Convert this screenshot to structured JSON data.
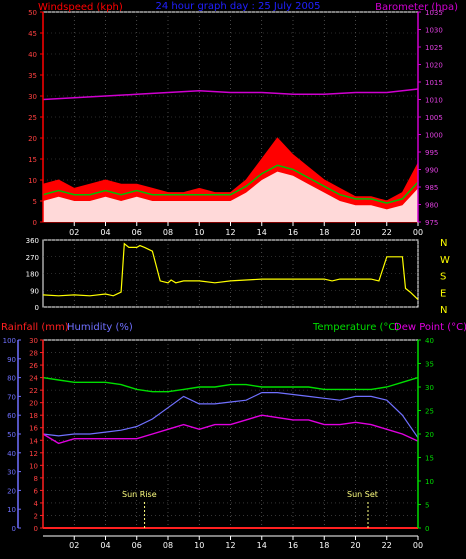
{
  "header": {
    "left": "Windspeed (kph)",
    "center": "24 hour graph day : 25 July 2005",
    "right": "Barometer (hpa)"
  },
  "colors": {
    "wind": "#ff0000",
    "wind_avg": "#00c000",
    "gust_fill": "#ffffff",
    "barometer": "#d000d0",
    "direction": "#ffff00",
    "rainfall": "#ff2020",
    "humidity": "#7070ff",
    "temperature": "#00dd00",
    "dewpoint": "#e000e0",
    "sun": "#ffff80",
    "frame": "#ffffff"
  },
  "time_ticks": [
    "02",
    "04",
    "06",
    "08",
    "10",
    "12",
    "14",
    "16",
    "18",
    "20",
    "22",
    "00"
  ],
  "direction_labels": [
    "N",
    "W",
    "S",
    "E",
    "N"
  ],
  "lower_header": {
    "rain": "Rainfall (mm)",
    "humidity": "Humidity (%)",
    "temperature": "Temperature (°C)",
    "dewpoint": "Dew Point (°C)"
  },
  "annotations": {
    "sunrise": "Sun Rise",
    "sunset": "Sun Set"
  },
  "chart_data": [
    {
      "type": "area",
      "panel": "wind",
      "title": "24 hour graph day : 25 July 2005",
      "x_unit": "hour",
      "x_range": [
        0,
        24
      ],
      "y_left": {
        "label": "Windspeed (kph)",
        "range": [
          0,
          50
        ],
        "ticks": [
          0,
          5,
          10,
          15,
          20,
          25,
          30,
          35,
          40,
          45,
          50
        ]
      },
      "y_right": {
        "label": "Barometer (hpa)",
        "range": [
          975,
          1035
        ],
        "ticks": [
          975,
          980,
          985,
          990,
          995,
          1000,
          1005,
          1010,
          1015,
          1020,
          1025,
          1030,
          1035
        ]
      },
      "series": [
        {
          "name": "Windspeed (kph)",
          "axis": "left",
          "x": [
            0,
            1,
            2,
            3,
            4,
            5,
            6,
            7,
            8,
            9,
            10,
            11,
            12,
            13,
            14,
            15,
            16,
            17,
            18,
            19,
            20,
            21,
            22,
            23,
            24
          ],
          "values": [
            9,
            10,
            8,
            9,
            10,
            9,
            9,
            8,
            7,
            7,
            8,
            7,
            7,
            10,
            15,
            20,
            16,
            13,
            10,
            8,
            6,
            6,
            5,
            7,
            14
          ]
        },
        {
          "name": "",
          "axis": "left",
          "x": [
            0,
            1,
            2,
            3,
            4,
            5,
            6,
            7,
            8,
            9,
            10,
            11,
            12,
            13,
            14,
            15,
            16,
            17,
            18,
            19,
            20,
            21,
            22,
            23,
            24
          ],
          "values": [
            5,
            6,
            5,
            5,
            6,
            5,
            6,
            5,
            5,
            5,
            5,
            5,
            5,
            7,
            10,
            12,
            11,
            9,
            7,
            5,
            4,
            4,
            3,
            4,
            8
          ]
        },
        {
          "name": "Barometer (hpa)",
          "axis": "right",
          "x": [
            0,
            2,
            4,
            6,
            8,
            10,
            12,
            14,
            16,
            18,
            20,
            22,
            23,
            24
          ],
          "values": [
            1010,
            1010.5,
            1011,
            1011.5,
            1012,
            1012.5,
            1012,
            1012,
            1011.5,
            1011.5,
            1012,
            1012,
            1012.5,
            1013
          ]
        }
      ]
    },
    {
      "type": "line",
      "panel": "wind_direction",
      "x_unit": "hour",
      "x_range": [
        0,
        24
      ],
      "y_range": [
        0,
        360
      ],
      "y_ticks": [
        0,
        90,
        180,
        270,
        360
      ],
      "series": [
        {
          "name": "Wind direction",
          "x": [
            0,
            1,
            2,
            3,
            4,
            4.5,
            5,
            5.2,
            5.5,
            6,
            6.2,
            6.5,
            7,
            7.5,
            8,
            8.2,
            8.5,
            9,
            10,
            11,
            12,
            14,
            16,
            18,
            18.5,
            19,
            20,
            21,
            21.5,
            22,
            23,
            23.2,
            23.5,
            24
          ],
          "values": [
            65,
            60,
            65,
            60,
            70,
            60,
            80,
            340,
            320,
            320,
            330,
            320,
            300,
            140,
            130,
            145,
            130,
            140,
            140,
            130,
            140,
            150,
            150,
            150,
            140,
            150,
            150,
            150,
            140,
            270,
            270,
            100,
            80,
            40
          ]
        }
      ]
    },
    {
      "type": "line",
      "panel": "temp_humidity",
      "x_unit": "hour",
      "x_range": [
        0,
        24
      ],
      "y_left_rain": {
        "label": "Rainfall (mm)",
        "range": [
          0,
          30
        ],
        "ticks": [
          0,
          2,
          4,
          6,
          8,
          10,
          12,
          14,
          16,
          18,
          20,
          22,
          24,
          26,
          28,
          30
        ]
      },
      "y_left_humidity": {
        "label": "Humidity (%)",
        "range": [
          0,
          100
        ],
        "ticks": [
          0,
          10,
          20,
          30,
          40,
          50,
          60,
          70,
          80,
          90,
          100
        ]
      },
      "y_right": {
        "label": "Temperature (°C)",
        "range": [
          0,
          40
        ],
        "ticks": [
          0,
          5,
          10,
          15,
          20,
          25,
          30,
          35,
          40
        ]
      },
      "series": [
        {
          "name": "Rainfall (mm)",
          "axis": "rain",
          "x": [
            0,
            24
          ],
          "values": [
            0,
            0
          ]
        },
        {
          "name": "Humidity (%)",
          "axis": "humidity",
          "x": [
            0,
            1,
            2,
            3,
            4,
            5,
            6,
            7,
            8,
            9,
            10,
            11,
            12,
            13,
            14,
            15,
            16,
            17,
            18,
            19,
            20,
            21,
            22,
            23,
            24
          ],
          "values": [
            50,
            49,
            50,
            50,
            51,
            52,
            54,
            58,
            64,
            70,
            66,
            66,
            67,
            68,
            72,
            72,
            71,
            70,
            69,
            68,
            70,
            70,
            68,
            60,
            48
          ]
        },
        {
          "name": "Temperature (°C)",
          "axis": "right",
          "x": [
            0,
            1,
            2,
            3,
            4,
            5,
            6,
            7,
            8,
            9,
            10,
            11,
            12,
            13,
            14,
            15,
            16,
            17,
            18,
            19,
            20,
            21,
            22,
            23,
            24
          ],
          "values": [
            32,
            31.5,
            31,
            31,
            31,
            30.5,
            29.5,
            29,
            29,
            29.5,
            30,
            30,
            30.5,
            30.5,
            30,
            30,
            30,
            30,
            29.5,
            29.5,
            29.5,
            29.5,
            30,
            31,
            32
          ]
        },
        {
          "name": "Dew Point (°C)",
          "axis": "right",
          "x": [
            0,
            1,
            2,
            3,
            4,
            5,
            6,
            7,
            8,
            9,
            10,
            11,
            12,
            13,
            14,
            15,
            16,
            17,
            18,
            19,
            20,
            21,
            22,
            23,
            24
          ],
          "values": [
            20,
            18,
            19,
            19,
            19,
            19,
            19,
            20,
            21,
            22,
            21,
            22,
            22,
            23,
            24,
            23.5,
            23,
            23,
            22,
            22,
            22.5,
            22,
            21,
            20,
            18.5
          ]
        }
      ]
    }
  ],
  "sun_events_hour": {
    "sunrise": 6.5,
    "sunset": 20.8
  }
}
